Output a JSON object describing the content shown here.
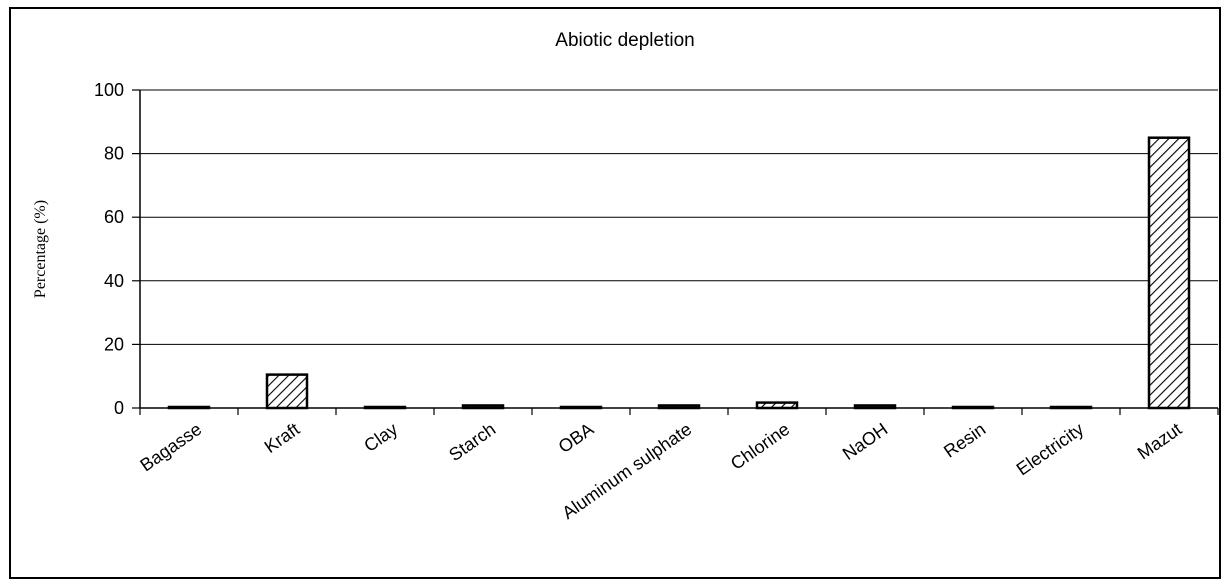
{
  "chart_data": {
    "type": "bar",
    "title": "Abiotic depletion",
    "xlabel": "",
    "ylabel": "Percentage (%)",
    "ylim": [
      0,
      100
    ],
    "yticks": [
      0,
      20,
      40,
      60,
      80,
      100
    ],
    "grid": true,
    "legend": "none",
    "bar_fill": "diagonal-hatch",
    "colors": {
      "bar_stroke": "#000000",
      "hatch": "#000000",
      "background": "#ffffff",
      "gridline": "#000000"
    },
    "categories": [
      "Bagasse",
      "Kraft",
      "Clay",
      "Starch",
      "OBA",
      "Aluminum sulphate",
      "Chlorine",
      "NaOH",
      "Resin",
      "Electricity",
      "Mazut"
    ],
    "values": [
      0.1,
      10.5,
      0.1,
      0.8,
      0.1,
      0.8,
      1.7,
      0.8,
      0.1,
      0.1,
      85
    ]
  }
}
